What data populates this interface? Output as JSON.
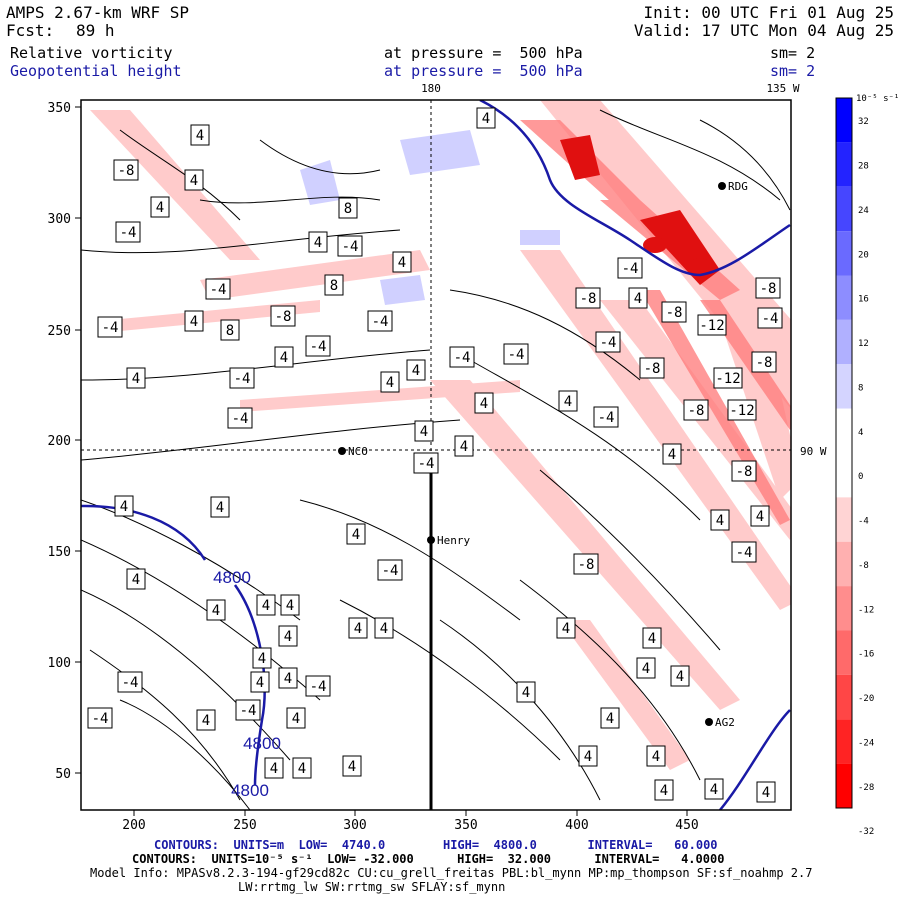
{
  "header": {
    "model": "AMPS 2.67-km WRF SP",
    "fcst_label": "Fcst:",
    "fcst_value": "89 h",
    "init": "Init: 00 UTC Fri 01 Aug 25",
    "valid": "Valid: 17 UTC Mon 04 Aug 25",
    "field1": "Relative vorticity",
    "field1_level": "at pressure =  500 hPa",
    "field1_sm": "sm= 2",
    "field2": "Geopotential height",
    "field2_level": "at pressure =  500 hPa",
    "field2_sm": "sm= 2"
  },
  "map": {
    "meridian_top_label": "180",
    "meridian_top_label2": "135 W",
    "lat_right_label": "90 W",
    "x_ticks": [
      "200",
      "250",
      "300",
      "350",
      "400",
      "450"
    ],
    "y_ticks": [
      "350",
      "300",
      "250",
      "200",
      "150",
      "100",
      "50"
    ],
    "stations": [
      {
        "name": "RDG"
      },
      {
        "name": "NCO"
      },
      {
        "name": "Henry"
      },
      {
        "name": "AG2"
      }
    ],
    "height_labels": [
      "4800",
      "4800",
      "4800"
    ],
    "vort_labels": [
      "4",
      "-8",
      "4",
      "4",
      "-4",
      "8",
      "-4",
      "4",
      "8",
      "4",
      "-4",
      "4",
      "8",
      "-8",
      "-4",
      "-4",
      "-4",
      "4",
      "-4",
      "4",
      "4",
      "4",
      "-4",
      "-4",
      "4",
      "-4",
      "4",
      "-4",
      "4",
      "4",
      "-4",
      "-8",
      "4",
      "-8",
      "-12",
      "-4",
      "-8",
      "-12",
      "-8",
      "-12",
      "-8",
      "-4",
      "-8",
      "-4",
      "-8",
      "4",
      "4",
      "4",
      "4",
      "4",
      "4",
      "4",
      "4",
      "4",
      "4",
      "4",
      "4",
      "-4",
      "4",
      "-4",
      "4",
      "-4",
      "-4",
      "4",
      "4",
      "-4",
      "-8",
      "4",
      "-4",
      "4",
      "4",
      "4",
      "4",
      "4",
      "4",
      "4",
      "4",
      "4",
      "4",
      "4",
      "4",
      "4",
      "4",
      "4",
      "4"
    ]
  },
  "colorbar": {
    "unit_label": "10⁻⁵ s⁻¹",
    "ticks": [
      "32",
      "28",
      "24",
      "20",
      "16",
      "12",
      "8",
      "4",
      "0",
      "-4",
      "-8",
      "-12",
      "-16",
      "-20",
      "-24",
      "-28",
      "-32"
    ],
    "colors": [
      "#0000ff",
      "#2323ff",
      "#4646ff",
      "#6a6aff",
      "#8d8dff",
      "#b0b0ff",
      "#d4d4ff",
      "#ffffff",
      "#ffffff",
      "#ffd4d4",
      "#ffb0b0",
      "#ff8d8d",
      "#ff6a6a",
      "#ff4646",
      "#ff2323",
      "#ff0000"
    ]
  },
  "footer": {
    "line1": "CONTOURS:  UNITS=m  LOW=  4740.0        HIGH=  4800.0       INTERVAL=   60.000",
    "line2": "CONTOURS:  UNITS=10⁻⁵ s⁻¹  LOW= -32.000      HIGH=  32.000      INTERVAL=   4.0000",
    "line3": "Model Info: MPASv8.2.3-194-gf29cd82c CU:cu_grell_freitas PBL:bl_mynn MP:mp_thompson SF:sf_noahmp 2.7",
    "line4": "LW:rrtmg_lw SW:rrtmg_sw SFLAY:sf_mynn"
  }
}
